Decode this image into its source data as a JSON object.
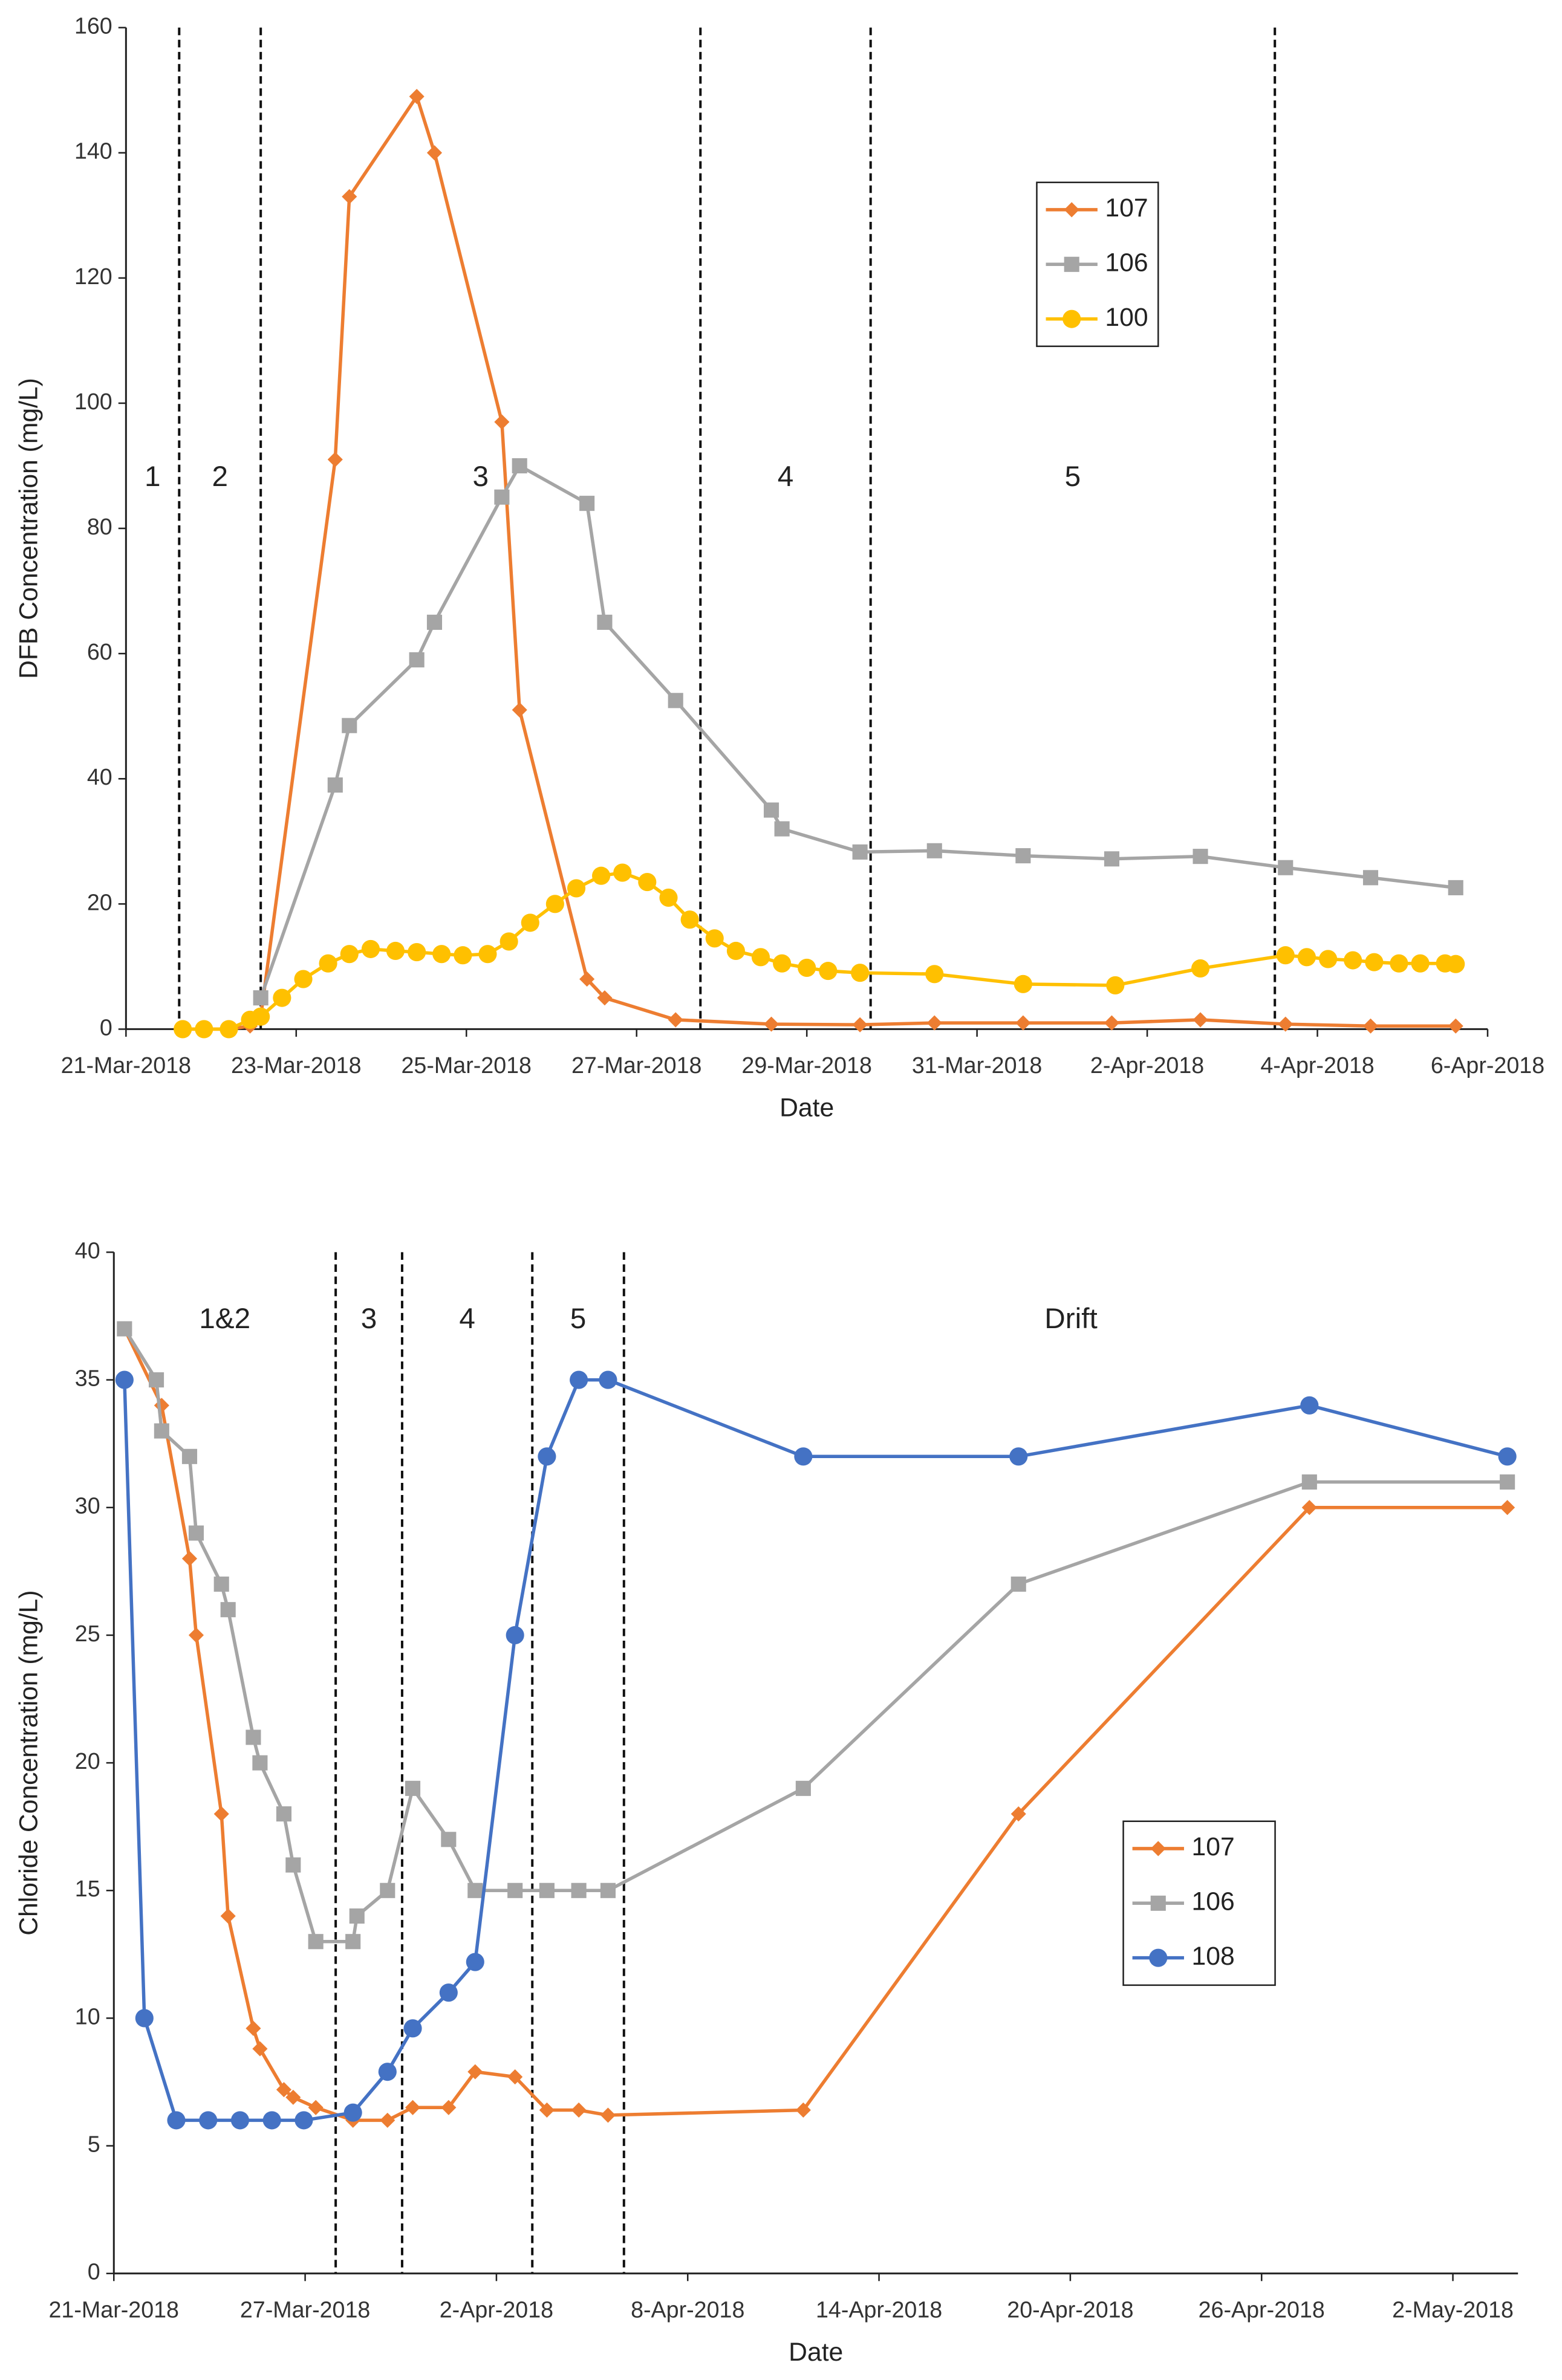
{
  "chart_data": [
    {
      "type": "line",
      "xlabel": "Date",
      "ylabel": "DFB Concentration (mg/L)",
      "xlim": [
        "2018-03-21T00:00",
        "2018-04-06T00:00"
      ],
      "xticks": [
        {
          "value": "2018-03-21T00:00",
          "label": "21-Mar-2018"
        },
        {
          "value": "2018-03-23T00:00",
          "label": "23-Mar-2018"
        },
        {
          "value": "2018-03-25T00:00",
          "label": "25-Mar-2018"
        },
        {
          "value": "2018-03-27T00:00",
          "label": "27-Mar-2018"
        },
        {
          "value": "2018-03-29T00:00",
          "label": "29-Mar-2018"
        },
        {
          "value": "2018-03-31T00:00",
          "label": "31-Mar-2018"
        },
        {
          "value": "2018-04-02T00:00",
          "label": "2-Apr-2018"
        },
        {
          "value": "2018-04-04T00:00",
          "label": "4-Apr-2018"
        },
        {
          "value": "2018-04-06T00:00",
          "label": "6-Apr-2018"
        }
      ],
      "ylim": [
        0,
        160
      ],
      "yticks": [
        0,
        20,
        40,
        60,
        80,
        100,
        120,
        140,
        160
      ],
      "grid": false,
      "legend": "upper right",
      "phase_lines": [
        "2018-03-21T15:00",
        "2018-03-22T14:00",
        "2018-03-27T18:00",
        "2018-03-29T18:00",
        "2018-04-03T12:00"
      ],
      "phase_labels": [
        "1",
        "2",
        "3",
        "4",
        "5"
      ],
      "series": [
        {
          "name": "107",
          "color": "#ED7D31",
          "marker": "diamond",
          "x": [
            "2018-03-21T16:00",
            "2018-03-22T05:00",
            "2018-03-22T11:00",
            "2018-03-22T14:00",
            "2018-03-23T11:00",
            "2018-03-23T15:00",
            "2018-03-24T10:00",
            "2018-03-24T15:00",
            "2018-03-25T10:00",
            "2018-03-25T15:00",
            "2018-03-26T10:00",
            "2018-03-26T15:00",
            "2018-03-27T11:00",
            "2018-03-28T14:00",
            "2018-03-29T15:00",
            "2018-03-30T12:00",
            "2018-03-31T13:00",
            "2018-04-01T14:00",
            "2018-04-02T15:00",
            "2018-04-03T15:00",
            "2018-04-04T15:00",
            "2018-04-05T15:00"
          ],
          "values": [
            0,
            0,
            0.5,
            2,
            91,
            133,
            149,
            140,
            97,
            51,
            8,
            5,
            1.5,
            0.8,
            0.7,
            1,
            1,
            1,
            1.5,
            0.8,
            0.5,
            0.5
          ]
        },
        {
          "name": "106",
          "color": "#A5A5A5",
          "marker": "square",
          "x": [
            "2018-03-22T14:00",
            "2018-03-23T11:00",
            "2018-03-23T15:00",
            "2018-03-24T10:00",
            "2018-03-24T15:00",
            "2018-03-25T10:00",
            "2018-03-25T15:00",
            "2018-03-26T10:00",
            "2018-03-26T15:00",
            "2018-03-27T11:00",
            "2018-03-28T14:00",
            "2018-03-28T17:00",
            "2018-03-29T15:00",
            "2018-03-30T12:00",
            "2018-03-31T13:00",
            "2018-04-01T14:00",
            "2018-04-02T15:00",
            "2018-04-03T15:00",
            "2018-04-04T15:00",
            "2018-04-05T15:00"
          ],
          "values": [
            5,
            39,
            48.5,
            59,
            65,
            85,
            90,
            84,
            65,
            52.5,
            35,
            32,
            28.3,
            28.5,
            27.7,
            27.2,
            27.6,
            25.8,
            24.2,
            22.6
          ]
        },
        {
          "name": "100",
          "color": "#FFC000",
          "marker": "circle",
          "x": [
            "2018-03-21T16:00",
            "2018-03-21T22:00",
            "2018-03-22T05:00",
            "2018-03-22T11:00",
            "2018-03-22T14:00",
            "2018-03-22T20:00",
            "2018-03-23T02:00",
            "2018-03-23T09:00",
            "2018-03-23T15:00",
            "2018-03-23T21:00",
            "2018-03-24T04:00",
            "2018-03-24T10:00",
            "2018-03-24T17:00",
            "2018-03-24T23:00",
            "2018-03-25T06:00",
            "2018-03-25T12:00",
            "2018-03-25T18:00",
            "2018-03-26T01:00",
            "2018-03-26T07:00",
            "2018-03-26T14:00",
            "2018-03-26T20:00",
            "2018-03-27T03:00",
            "2018-03-27T09:00",
            "2018-03-27T15:00",
            "2018-03-27T22:00",
            "2018-03-28T04:00",
            "2018-03-28T11:00",
            "2018-03-28T17:00",
            "2018-03-29T00:00",
            "2018-03-29T06:00",
            "2018-03-29T15:00",
            "2018-03-30T12:00",
            "2018-03-31T13:00",
            "2018-04-01T15:00",
            "2018-04-02T15:00",
            "2018-04-03T15:00",
            "2018-04-03T21:00",
            "2018-04-04T03:00",
            "2018-04-04T10:00",
            "2018-04-04T16:00",
            "2018-04-04T23:00",
            "2018-04-05T05:00",
            "2018-04-05T12:00",
            "2018-04-05T15:00"
          ],
          "values": [
            0,
            0,
            0,
            1.5,
            2,
            5,
            8,
            10.5,
            12,
            12.8,
            12.5,
            12.3,
            12,
            11.8,
            12,
            14,
            17,
            20,
            22.5,
            24.5,
            25,
            23.5,
            21,
            17.5,
            14.5,
            12.5,
            11.5,
            10.5,
            9.8,
            9.3,
            9,
            8.8,
            7.2,
            7,
            9.7,
            11.8,
            11.5,
            11.2,
            11,
            10.7,
            10.5,
            10.5,
            10.5,
            10.4
          ]
        }
      ]
    },
    {
      "type": "line",
      "xlabel": "Date",
      "ylabel": "Chloride Concentration (mg/L)",
      "xlim": [
        "2018-03-21T00:00",
        "2018-05-04T01:00"
      ],
      "xticks": [
        {
          "value": "2018-03-21T00:00",
          "label": "21-Mar-2018"
        },
        {
          "value": "2018-03-27T00:00",
          "label": "27-Mar-2018"
        },
        {
          "value": "2018-04-02T00:00",
          "label": "2-Apr-2018"
        },
        {
          "value": "2018-04-08T00:00",
          "label": "8-Apr-2018"
        },
        {
          "value": "2018-04-14T00:00",
          "label": "14-Apr-2018"
        },
        {
          "value": "2018-04-20T00:00",
          "label": "20-Apr-2018"
        },
        {
          "value": "2018-04-26T00:00",
          "label": "26-Apr-2018"
        },
        {
          "value": "2018-05-02T00:00",
          "label": "2-May-2018"
        }
      ],
      "ylim": [
        0,
        40
      ],
      "yticks": [
        0,
        5,
        10,
        15,
        20,
        25,
        30,
        35,
        40
      ],
      "grid": false,
      "legend": "lower right",
      "phase_lines": [
        "2018-03-27T23:00",
        "2018-03-30T01:00",
        "2018-04-03T03:00",
        "2018-04-06T00:00"
      ],
      "phase_labels": [
        "1&2",
        "3",
        "4",
        "5",
        "Drift"
      ],
      "series": [
        {
          "name": "107",
          "color": "#ED7D31",
          "marker": "diamond",
          "x": [
            "2018-03-21T08:00",
            "2018-03-22T12:00",
            "2018-03-23T09:00",
            "2018-03-23T14:00",
            "2018-03-24T09:00",
            "2018-03-24T14:00",
            "2018-03-25T09:00",
            "2018-03-25T14:00",
            "2018-03-26T08:00",
            "2018-03-26T15:00",
            "2018-03-27T08:00",
            "2018-03-28T12:00",
            "2018-03-29T14:00",
            "2018-03-30T09:00",
            "2018-03-31T12:00",
            "2018-04-01T08:00",
            "2018-04-02T14:00",
            "2018-04-03T14:00",
            "2018-04-04T14:00",
            "2018-04-05T12:00",
            "2018-04-11T15:00",
            "2018-04-18T09:00",
            "2018-04-27T12:00",
            "2018-05-03T17:00"
          ],
          "values": [
            37,
            34,
            28,
            25,
            18,
            14,
            9.6,
            8.8,
            7.2,
            6.9,
            6.5,
            6,
            6,
            6.5,
            6.5,
            7.9,
            7.7,
            6.4,
            6.4,
            6.2,
            6.4,
            18,
            30,
            30
          ]
        },
        {
          "name": "106",
          "color": "#A5A5A5",
          "marker": "square",
          "x": [
            "2018-03-21T08:00",
            "2018-03-22T08:00",
            "2018-03-22T12:00",
            "2018-03-23T09:00",
            "2018-03-23T14:00",
            "2018-03-24T09:00",
            "2018-03-24T14:00",
            "2018-03-25T09:00",
            "2018-03-25T14:00",
            "2018-03-26T08:00",
            "2018-03-26T15:00",
            "2018-03-27T08:00",
            "2018-03-28T12:00",
            "2018-03-28T15:00",
            "2018-03-29T14:00",
            "2018-03-30T09:00",
            "2018-03-31T12:00",
            "2018-04-01T08:00",
            "2018-04-02T14:00",
            "2018-04-03T14:00",
            "2018-04-04T14:00",
            "2018-04-05T12:00",
            "2018-04-11T15:00",
            "2018-04-18T09:00",
            "2018-04-27T12:00",
            "2018-05-03T17:00"
          ],
          "values": [
            37,
            35,
            33,
            32,
            29,
            27,
            26,
            21,
            20,
            18,
            16,
            13,
            13,
            14,
            15,
            19,
            17,
            15,
            15,
            15,
            15,
            15,
            19,
            27,
            31,
            31
          ]
        },
        {
          "name": "108",
          "color": "#4472C4",
          "marker": "circle",
          "x": [
            "2018-03-21T08:00",
            "2018-03-21T23:00",
            "2018-03-22T23:00",
            "2018-03-23T23:00",
            "2018-03-24T23:00",
            "2018-03-25T23:00",
            "2018-03-26T23:00",
            "2018-03-28T12:00",
            "2018-03-29T14:00",
            "2018-03-30T09:00",
            "2018-03-31T12:00",
            "2018-04-01T08:00",
            "2018-04-02T14:00",
            "2018-04-03T14:00",
            "2018-04-04T14:00",
            "2018-04-05T12:00",
            "2018-04-11T15:00",
            "2018-04-18T09:00",
            "2018-04-27T12:00",
            "2018-05-03T17:00"
          ],
          "values": [
            35,
            10,
            6,
            6,
            6,
            6,
            6,
            6.3,
            7.9,
            9.6,
            11,
            12.2,
            25,
            32,
            35,
            35,
            32,
            32,
            34,
            32
          ]
        }
      ]
    }
  ]
}
